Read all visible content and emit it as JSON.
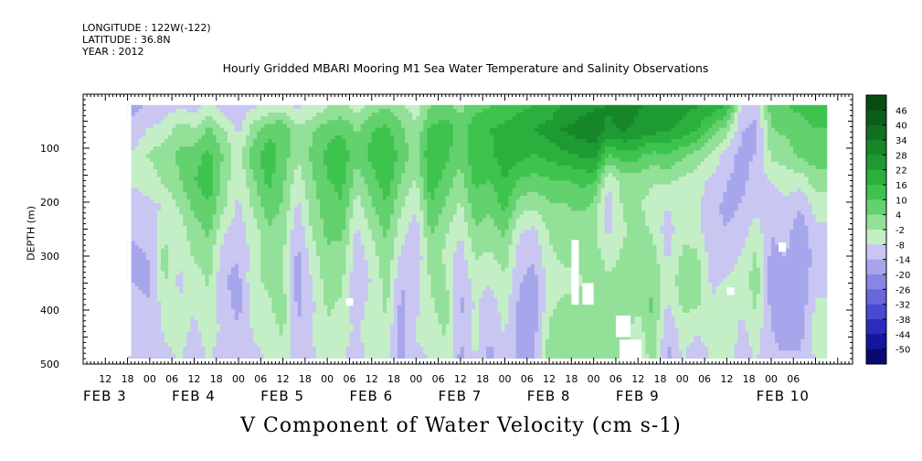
{
  "header": {
    "longitude": "LONGITUDE : 122W(-122)",
    "latitude": "LATITUDE : 36.8N",
    "year": "YEAR : 2012"
  },
  "chart_data": {
    "type": "heatmap",
    "title": "Hourly Gridded MBARI Mooring M1 Sea Water Temperature and Salinity Observations",
    "xlabel": "V Component of Water Velocity (cm s-1)",
    "ylabel": "DEPTH (m)",
    "yticks": [
      100,
      200,
      300,
      400,
      500
    ],
    "ylim": [
      500,
      0
    ],
    "x_hour_ticks": [
      "12",
      "18",
      "00",
      "06",
      "12",
      "18",
      "00",
      "06",
      "12",
      "18",
      "00",
      "06",
      "12",
      "18",
      "00",
      "06",
      "12",
      "18",
      "00",
      "06",
      "12",
      "18",
      "00",
      "06",
      "12",
      "18",
      "00",
      "06",
      "12",
      "18",
      "00",
      "06"
    ],
    "x_day_labels": [
      "FEB 3",
      "FEB 4",
      "FEB 5",
      "FEB 6",
      "FEB 7",
      "FEB 8",
      "FEB 9",
      "FEB 10"
    ],
    "colorbar_ticks": [
      46,
      40,
      34,
      28,
      22,
      16,
      10,
      4,
      -2,
      -8,
      -14,
      -20,
      -26,
      -32,
      -38,
      -44,
      -50
    ],
    "colorbar_colors": [
      "#0a4a14",
      "#0c5c1a",
      "#117021",
      "#178629",
      "#1f9a33",
      "#2bb03e",
      "#3fc34f",
      "#63d16e",
      "#93e099",
      "#c4efc6",
      "#c9c6f2",
      "#a7a6ec",
      "#8786e4",
      "#6867dc",
      "#4a49d2",
      "#2c2bbd",
      "#15169e",
      "#080a72"
    ],
    "data_x_range_hours": [
      -6,
      183
    ],
    "data_depth_range_m": [
      20,
      485
    ],
    "columns": [
      {
        "h": -6,
        "v": [
          -12,
          -10,
          -6,
          -4,
          -8,
          -10,
          -12,
          -10,
          -8,
          -10,
          -9
        ]
      },
      {
        "h": 0,
        "v": [
          -10,
          -4,
          2,
          -2,
          -6,
          -8,
          -10,
          -12,
          -10,
          -8,
          -10
        ]
      },
      {
        "h": 4,
        "v": [
          -8,
          -2,
          4,
          2,
          -4,
          -2,
          4,
          2,
          -2,
          -4,
          -6
        ]
      },
      {
        "h": 8,
        "v": [
          -6,
          4,
          8,
          6,
          2,
          -2,
          -4,
          -6,
          -4,
          -2,
          -4
        ]
      },
      {
        "h": 12,
        "v": [
          -8,
          2,
          10,
          12,
          8,
          4,
          2,
          -2,
          -4,
          -6,
          -8
        ]
      },
      {
        "h": 16,
        "v": [
          -4,
          8,
          14,
          16,
          12,
          8,
          4,
          2,
          0,
          -2,
          -4
        ]
      },
      {
        "h": 20,
        "v": [
          -8,
          2,
          6,
          4,
          2,
          -4,
          -8,
          -10,
          -8,
          -6,
          -8
        ]
      },
      {
        "h": 24,
        "v": [
          -10,
          -6,
          -2,
          -4,
          -6,
          -8,
          -10,
          -12,
          -12,
          -10,
          -10
        ]
      },
      {
        "h": 28,
        "v": [
          -6,
          4,
          10,
          6,
          2,
          -2,
          -2,
          0,
          -2,
          -4,
          -6
        ]
      },
      {
        "h": 32,
        "v": [
          -4,
          10,
          16,
          14,
          10,
          6,
          4,
          2,
          0,
          -2,
          -4
        ]
      },
      {
        "h": 36,
        "v": [
          -2,
          12,
          10,
          8,
          6,
          4,
          2,
          2,
          4,
          2,
          0
        ]
      },
      {
        "h": 40,
        "v": [
          -6,
          2,
          2,
          -2,
          -6,
          -10,
          -12,
          -14,
          -12,
          -10,
          -10
        ]
      },
      {
        "h": 44,
        "v": [
          -4,
          6,
          8,
          6,
          4,
          2,
          -2,
          -4,
          -6,
          -4,
          -6
        ]
      },
      {
        "h": 48,
        "v": [
          0,
          10,
          14,
          12,
          10,
          8,
          6,
          4,
          2,
          0,
          -2
        ]
      },
      {
        "h": 52,
        "v": [
          2,
          12,
          16,
          14,
          12,
          8,
          4,
          2,
          0,
          -2,
          -4
        ]
      },
      {
        "h": 56,
        "v": [
          -2,
          6,
          8,
          4,
          -2,
          -6,
          -8,
          -10,
          -8,
          -6,
          -8
        ]
      },
      {
        "h": 60,
        "v": [
          4,
          12,
          14,
          10,
          6,
          2,
          -2,
          -4,
          -2,
          0,
          -2
        ]
      },
      {
        "h": 64,
        "v": [
          6,
          14,
          18,
          16,
          12,
          8,
          6,
          4,
          2,
          0,
          -2
        ]
      },
      {
        "h": 68,
        "v": [
          2,
          8,
          10,
          6,
          2,
          -2,
          -6,
          -10,
          -12,
          -14,
          -12
        ]
      },
      {
        "h": 72,
        "v": [
          -2,
          2,
          4,
          0,
          -4,
          -8,
          -10,
          -8,
          -6,
          -4,
          -6
        ]
      },
      {
        "h": 76,
        "v": [
          6,
          14,
          18,
          16,
          12,
          8,
          4,
          2,
          0,
          -2,
          -4
        ]
      },
      {
        "h": 80,
        "v": [
          8,
          16,
          14,
          10,
          6,
          2,
          0,
          2,
          4,
          2,
          0
        ]
      },
      {
        "h": 84,
        "v": [
          4,
          10,
          8,
          4,
          0,
          -4,
          -8,
          -10,
          -12,
          -10,
          -12
        ]
      },
      {
        "h": 88,
        "v": [
          10,
          16,
          18,
          14,
          10,
          6,
          2,
          -2,
          -4,
          -2,
          -4
        ]
      },
      {
        "h": 92,
        "v": [
          12,
          18,
          16,
          12,
          8,
          4,
          0,
          -4,
          -8,
          -10,
          -12
        ]
      },
      {
        "h": 96,
        "v": [
          14,
          20,
          22,
          18,
          14,
          8,
          4,
          0,
          -2,
          -4,
          -4
        ]
      },
      {
        "h": 100,
        "v": [
          16,
          22,
          20,
          12,
          4,
          -4,
          -8,
          -10,
          -12,
          -14,
          -14
        ]
      },
      {
        "h": 104,
        "v": [
          18,
          24,
          18,
          10,
          2,
          -6,
          -10,
          -12,
          -14,
          -12,
          -10
        ]
      },
      {
        "h": 108,
        "v": [
          20,
          26,
          20,
          12,
          6,
          2,
          0,
          -2,
          0,
          2,
          4
        ]
      },
      {
        "h": 112,
        "v": [
          24,
          30,
          22,
          12,
          6,
          4,
          2,
          0,
          2,
          4,
          4
        ]
      },
      {
        "h": 116,
        "v": [
          26,
          32,
          24,
          14,
          8,
          4,
          2,
          0,
          2,
          4,
          4
        ]
      },
      {
        "h": 120,
        "v": [
          28,
          34,
          26,
          14,
          6,
          2,
          4,
          6,
          4,
          2,
          2
        ]
      },
      {
        "h": 124,
        "v": [
          30,
          28,
          12,
          -4,
          -8,
          -6,
          -2,
          2,
          4,
          6,
          4
        ]
      },
      {
        "h": 128,
        "v": [
          32,
          30,
          16,
          4,
          2,
          0,
          2,
          4,
          6,
          4,
          2
        ]
      },
      {
        "h": 132,
        "v": [
          30,
          28,
          14,
          4,
          2,
          4,
          6,
          4,
          2,
          -2,
          -4
        ]
      },
      {
        "h": 136,
        "v": [
          28,
          26,
          10,
          2,
          -2,
          0,
          4,
          6,
          8,
          6,
          4
        ]
      },
      {
        "h": 140,
        "v": [
          26,
          24,
          12,
          2,
          -4,
          -8,
          -6,
          -2,
          -6,
          -10,
          -12
        ]
      },
      {
        "h": 144,
        "v": [
          26,
          22,
          8,
          0,
          -2,
          0,
          2,
          4,
          2,
          -2,
          -4
        ]
      },
      {
        "h": 148,
        "v": [
          24,
          18,
          4,
          -2,
          -4,
          -2,
          2,
          4,
          2,
          -4,
          -8
        ]
      },
      {
        "h": 152,
        "v": [
          22,
          10,
          0,
          -6,
          -8,
          -10,
          -8,
          -6,
          -4,
          -2,
          -4
        ]
      },
      {
        "h": 156,
        "v": [
          18,
          4,
          -8,
          -10,
          -12,
          -10,
          -8,
          -4,
          -2,
          0,
          -2
        ]
      },
      {
        "h": 160,
        "v": [
          -6,
          -10,
          -12,
          -12,
          -10,
          -8,
          -4,
          -2,
          -4,
          -6,
          -8
        ]
      },
      {
        "h": 164,
        "v": [
          -8,
          -12,
          -10,
          -8,
          -6,
          -2,
          2,
          4,
          2,
          -2,
          -4
        ]
      },
      {
        "h": 168,
        "v": [
          10,
          6,
          2,
          -4,
          -8,
          -10,
          -12,
          -14,
          -12,
          -10,
          -10
        ]
      },
      {
        "h": 172,
        "v": [
          12,
          8,
          4,
          -2,
          -6,
          -8,
          -10,
          -12,
          -14,
          -12,
          -10
        ]
      },
      {
        "h": 176,
        "v": [
          14,
          10,
          8,
          -2,
          -10,
          -14,
          -16,
          -16,
          -14,
          -12,
          -10
        ]
      },
      {
        "h": 180,
        "v": [
          16,
          12,
          10,
          4,
          -2,
          -6,
          -8,
          -6,
          -4,
          -2,
          -4
        ]
      }
    ],
    "missing_regions": [
      {
        "h0": -6,
        "h1": -5,
        "d0": 20,
        "d1": 485
      },
      {
        "h0": 53,
        "h1": 55,
        "d0": 378,
        "d1": 392
      },
      {
        "h0": 114,
        "h1": 116,
        "d0": 270,
        "d1": 390
      },
      {
        "h0": 117,
        "h1": 120,
        "d0": 350,
        "d1": 390
      },
      {
        "h0": 126,
        "h1": 130,
        "d0": 410,
        "d1": 450
      },
      {
        "h0": 127,
        "h1": 133,
        "d0": 455,
        "d1": 490
      },
      {
        "h0": 156,
        "h1": 158,
        "d0": 358,
        "d1": 372
      },
      {
        "h0": 170,
        "h1": 172,
        "d0": 275,
        "d1": 292
      }
    ]
  }
}
